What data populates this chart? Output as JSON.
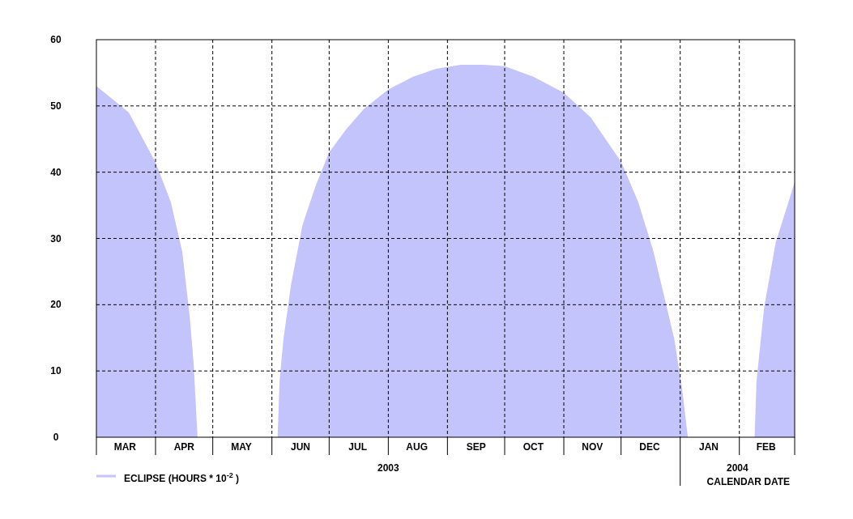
{
  "chart_data": {
    "type": "area",
    "xlabel": "CALENDAR DATE",
    "xlim": [
      "2003-03-01",
      "2004-03-01"
    ],
    "xticks": [
      {
        "value": "2003-03-01",
        "label": null
      },
      {
        "value": "2003-03-16",
        "label": "MAR"
      },
      {
        "value": "2003-04-01",
        "label": null
      },
      {
        "value": "2003-04-16",
        "label": "APR"
      },
      {
        "value": "2003-05-01",
        "label": null
      },
      {
        "value": "2003-05-16",
        "label": "MAY"
      },
      {
        "value": "2003-06-01",
        "label": null
      },
      {
        "value": "2003-06-16",
        "label": "JUN"
      },
      {
        "value": "2003-07-01",
        "label": null
      },
      {
        "value": "2003-07-16",
        "label": "JUL"
      },
      {
        "value": "2003-08-01",
        "label": null
      },
      {
        "value": "2003-08-16",
        "label": "AUG"
      },
      {
        "value": "2003-09-01",
        "label": null
      },
      {
        "value": "2003-09-16",
        "label": "SEP"
      },
      {
        "value": "2003-10-01",
        "label": null
      },
      {
        "value": "2003-10-16",
        "label": "OCT"
      },
      {
        "value": "2003-11-01",
        "label": null
      },
      {
        "value": "2003-11-16",
        "label": "NOV"
      },
      {
        "value": "2003-12-01",
        "label": null
      },
      {
        "value": "2003-12-16",
        "label": "DEC"
      },
      {
        "value": "2004-01-01",
        "label": null
      },
      {
        "value": "2004-01-16",
        "label": "JAN"
      },
      {
        "value": "2004-02-01",
        "label": null
      },
      {
        "value": "2004-02-15",
        "label": "FEB"
      },
      {
        "value": "2004-03-01",
        "label": null
      }
    ],
    "ylim": [
      0,
      60
    ],
    "yticks": [
      0,
      10,
      20,
      30,
      40,
      50,
      60
    ],
    "grid": true,
    "legend": "bottom left",
    "annotations": [
      "2003",
      "2004"
    ],
    "series": [
      {
        "name": "ECLIPSE (HOURS * 10$^{-2}$ )",
        "color": "#c4c4fc",
        "x": [
          "2003-03-01",
          "2003-03-18",
          "2003-04-01",
          "2003-04-09",
          "2003-04-15",
          "2003-04-19",
          "2003-04-21",
          "2003-04-23",
          "2003-06-04",
          "2003-06-05",
          "2003-06-07",
          "2003-06-11",
          "2003-06-17",
          "2003-06-24",
          "2003-07-01",
          "2003-07-10",
          "2003-07-19",
          "2003-08-01",
          "2003-08-14",
          "2003-08-26",
          "2003-09-08",
          "2003-09-20",
          "2003-10-01",
          "2003-10-16",
          "2003-11-01",
          "2003-11-15",
          "2003-12-01",
          "2003-12-10",
          "2003-12-18",
          "2003-12-24",
          "2003-12-29",
          "2004-01-02",
          "2004-01-05",
          "2004-02-09",
          "2004-02-10",
          "2004-02-14",
          "2004-02-20",
          "2004-03-01"
        ],
        "values": [
          53,
          49,
          41.5,
          35.5,
          28,
          18,
          11,
          0,
          0,
          8.5,
          14.7,
          23,
          32,
          38,
          43,
          46.5,
          49.5,
          52.5,
          54.4,
          55.6,
          56.2,
          56.2,
          56,
          54.4,
          52,
          48.3,
          41.6,
          35.5,
          28,
          20.8,
          14.7,
          7.3,
          0,
          0,
          8.5,
          19.6,
          29.3,
          38.5
        ]
      }
    ]
  }
}
